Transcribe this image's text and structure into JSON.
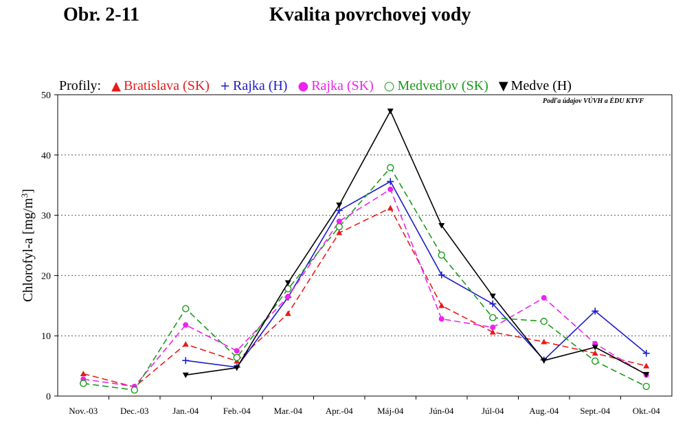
{
  "figure": {
    "number": "Obr. 2-11",
    "title": "Kvalita povrchovej vody",
    "source_note": "Podľa údajov VÚVH a ÉDU KTVF"
  },
  "legend": {
    "prefix": "Profily:",
    "items": [
      {
        "symbol": "▲",
        "label": "Bratislava (SK)",
        "color": "#e81b1b"
      },
      {
        "symbol": "+",
        "label": "Rajka (H)",
        "color": "#1a1acc"
      },
      {
        "symbol": "●",
        "label": "Rajka (SK)",
        "color": "#ee22ee"
      },
      {
        "symbol": "○",
        "label": "Medveďov (SK)",
        "color": "#1a9a1a"
      },
      {
        "symbol": "▼",
        "label": "Medve (H)",
        "color": "#000000"
      }
    ]
  },
  "chart_data": {
    "type": "line",
    "ylabel": "Chlorofyl-a [mg/m3]",
    "ylim": [
      0,
      50
    ],
    "yticks": [
      0,
      10,
      20,
      30,
      40,
      50
    ],
    "grid": "horizontal dotted",
    "categories": [
      "Nov.-03",
      "Dec.-03",
      "Jan.-04",
      "Feb.-04",
      "Mar.-04",
      "Apr.-04",
      "Máj-04",
      "Jún-04",
      "Júl-04",
      "Aug.-04",
      "Sept.-04",
      "Okt.-04"
    ],
    "series": [
      {
        "name": "Bratislava (SK)",
        "color": "#e81b1b",
        "dash": true,
        "marker": "triangle-up",
        "values": [
          3.7,
          1.5,
          8.6,
          5.8,
          13.7,
          27.1,
          31.2,
          15.0,
          10.6,
          9.0,
          7.1,
          5.0
        ]
      },
      {
        "name": "Rajka (H)",
        "color": "#1a1acc",
        "dash": false,
        "marker": "plus",
        "values": [
          null,
          null,
          5.9,
          4.8,
          16.4,
          30.8,
          35.6,
          20.1,
          15.3,
          6.0,
          14.1,
          7.1
        ]
      },
      {
        "name": "Rajka (SK)",
        "color": "#ee22ee",
        "dash": true,
        "marker": "circle-filled",
        "values": [
          2.8,
          1.6,
          11.8,
          7.5,
          16.5,
          29.0,
          34.3,
          12.8,
          11.4,
          16.3,
          8.7,
          3.5
        ]
      },
      {
        "name": "Medveďov (SK)",
        "color": "#1a9a1a",
        "dash": true,
        "marker": "circle-open",
        "values": [
          2.1,
          1.0,
          14.5,
          6.4,
          17.8,
          28.1,
          37.9,
          23.4,
          13.0,
          12.4,
          5.8,
          1.6
        ]
      },
      {
        "name": "Medve (H)",
        "color": "#000000",
        "dash": false,
        "marker": "triangle-down",
        "values": [
          null,
          null,
          3.5,
          4.7,
          18.8,
          31.7,
          47.3,
          28.3,
          16.6,
          5.9,
          8.1,
          3.6
        ]
      }
    ]
  }
}
